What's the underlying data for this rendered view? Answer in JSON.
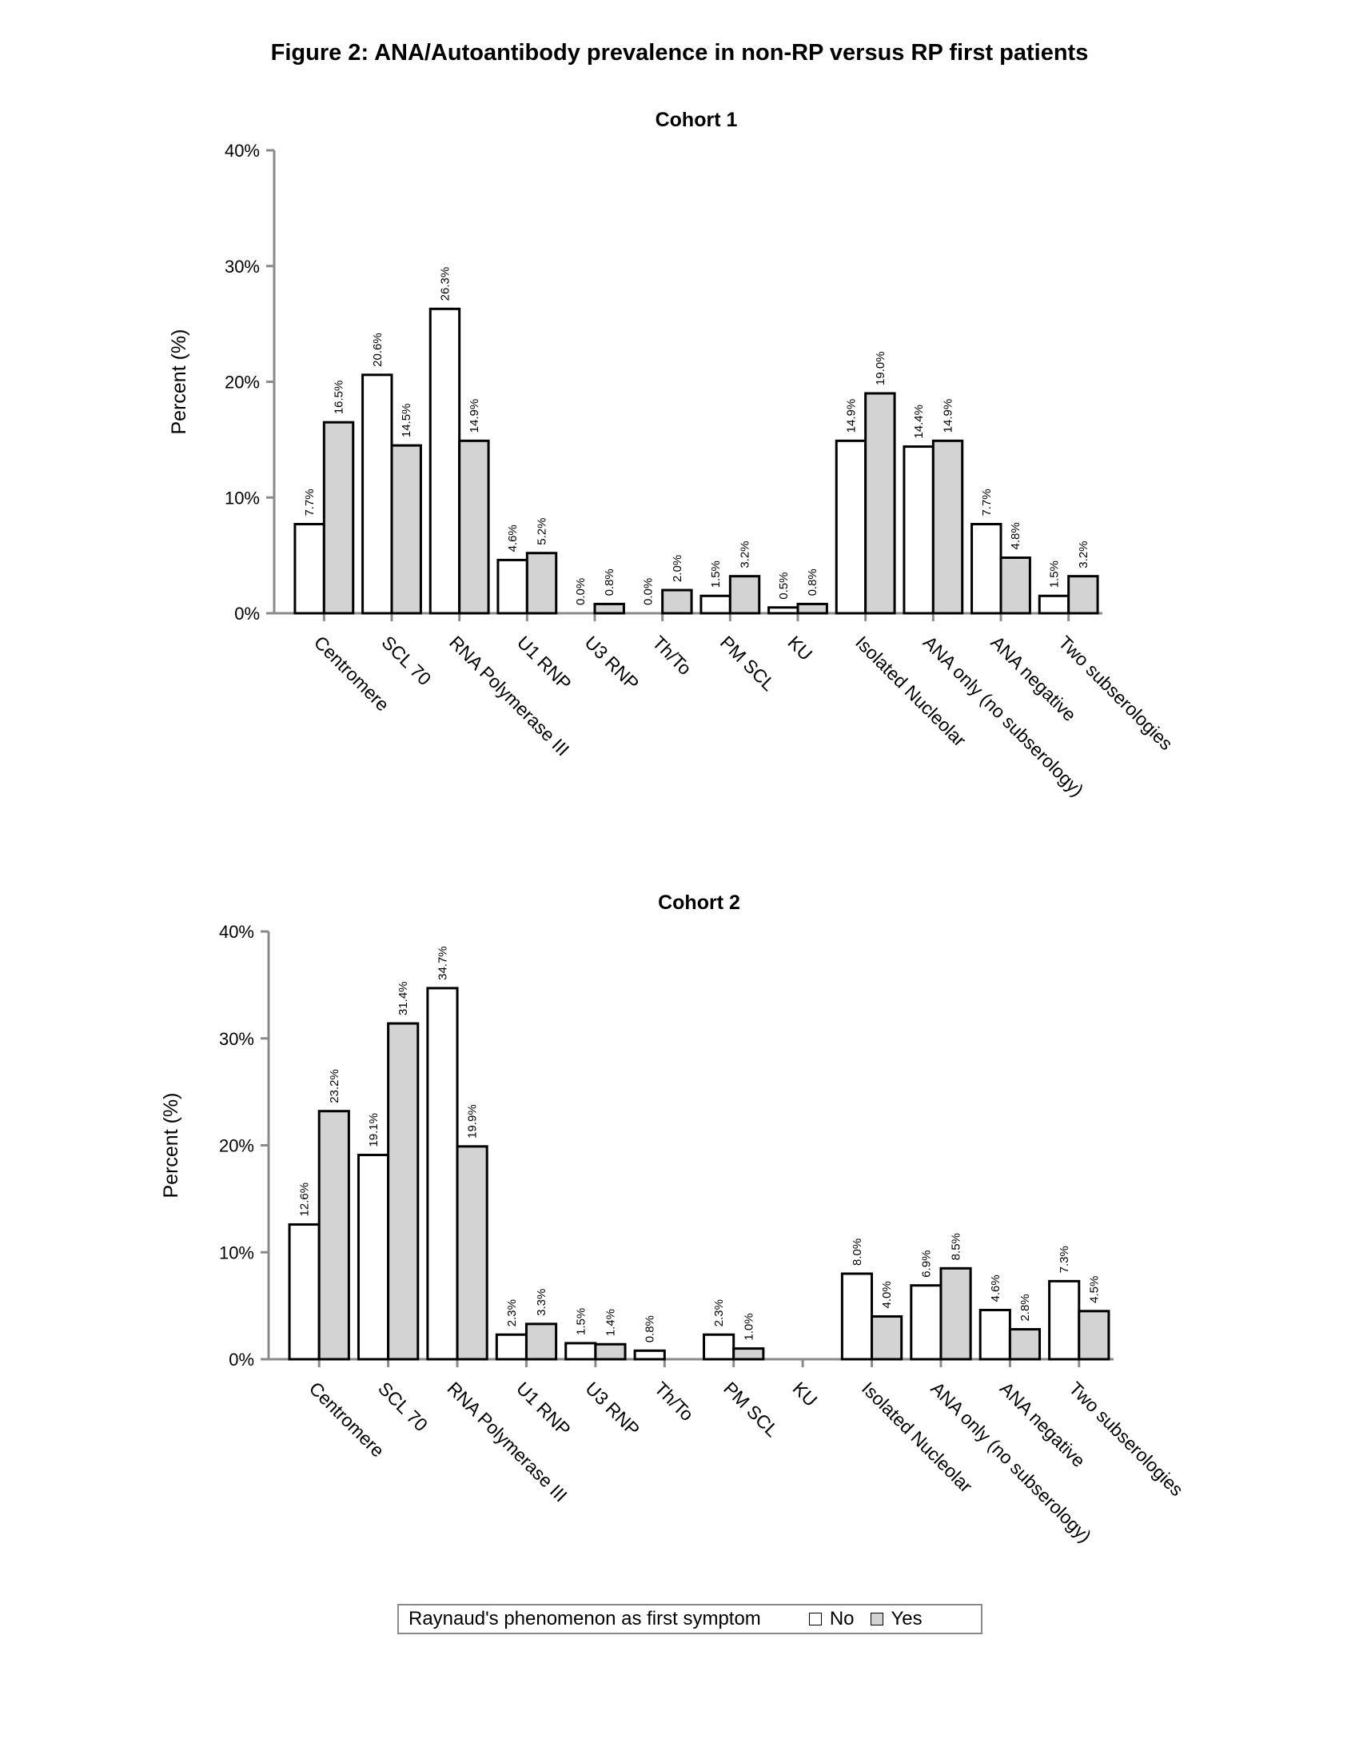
{
  "figure_title": "Figure 2: ANA/Autoantibody prevalence in non-RP versus RP first patients",
  "legend": {
    "title": "Raynaud's phenomenon as first symptom",
    "no_label": "No",
    "yes_label": "Yes"
  },
  "colors": {
    "no": "#ffffff",
    "yes": "#d3d3d3",
    "bar_stroke": "#000000",
    "axis": "#8a8a8a"
  },
  "chart_data": [
    {
      "type": "bar",
      "title": "Cohort 1",
      "ylabel": "Percent (%)",
      "xlabel": "",
      "ylim": [
        0,
        40
      ],
      "yticks": [
        "0%",
        "10%",
        "20%",
        "30%",
        "40%"
      ],
      "categories": [
        "Centromere",
        "SCL 70",
        "RNA Polymerase III",
        "U1 RNP",
        "U3 RNP",
        "Th/To",
        "PM SCL",
        "KU",
        "Isolated Nucleolar",
        "ANA only (no subserology)",
        "ANA negative",
        "Two subserologies"
      ],
      "series": [
        {
          "name": "No",
          "values": [
            7.7,
            20.6,
            26.3,
            4.6,
            0.0,
            0.0,
            1.5,
            0.5,
            14.9,
            14.4,
            7.7,
            1.5
          ],
          "labels": [
            "7.7%",
            "20.6%",
            "26.3%",
            "4.6%",
            "0.0%",
            "0.0%",
            "1.5%",
            "0.5%",
            "14.9%",
            "14.4%",
            "7.7%",
            "1.5%"
          ]
        },
        {
          "name": "Yes",
          "values": [
            16.5,
            14.5,
            14.9,
            5.2,
            0.8,
            2.0,
            3.2,
            0.8,
            19.0,
            14.9,
            4.8,
            3.2
          ],
          "labels": [
            "16.5%",
            "14.5%",
            "14.9%",
            "5.2%",
            "0.8%",
            "2.0%",
            "3.2%",
            "0.8%",
            "19.0%",
            "14.9%",
            "4.8%",
            "3.2%"
          ]
        }
      ]
    },
    {
      "type": "bar",
      "title": "Cohort 2",
      "ylabel": "Percent (%)",
      "xlabel": "",
      "ylim": [
        0,
        40
      ],
      "yticks": [
        "0%",
        "10%",
        "20%",
        "30%",
        "40%"
      ],
      "categories": [
        "Centromere",
        "SCL 70",
        "RNA Polymerase III",
        "U1 RNP",
        "U3 RNP",
        "Th/To",
        "PM SCL",
        "KU",
        "Isolated Nucleolar",
        "ANA only (no subserology)",
        "ANA negative",
        "Two subserologies"
      ],
      "series": [
        {
          "name": "No",
          "values": [
            12.6,
            19.1,
            34.7,
            2.3,
            1.5,
            0.8,
            2.3,
            null,
            8.0,
            6.9,
            4.6,
            7.3
          ],
          "labels": [
            "12.6%",
            "19.1%",
            "34.7%",
            "2.3%",
            "1.5%",
            "0.8%",
            "2.3%",
            null,
            "8.0%",
            "6.9%",
            "4.6%",
            "7.3%"
          ]
        },
        {
          "name": "Yes",
          "values": [
            23.2,
            31.4,
            19.9,
            3.3,
            1.4,
            null,
            1.0,
            null,
            4.0,
            8.5,
            2.8,
            4.5
          ],
          "labels": [
            "23.2%",
            "31.4%",
            "19.9%",
            "3.3%",
            "1.4%",
            null,
            "1.0%",
            null,
            "4.0%",
            "8.5%",
            "2.8%",
            "4.5%"
          ]
        }
      ]
    }
  ]
}
